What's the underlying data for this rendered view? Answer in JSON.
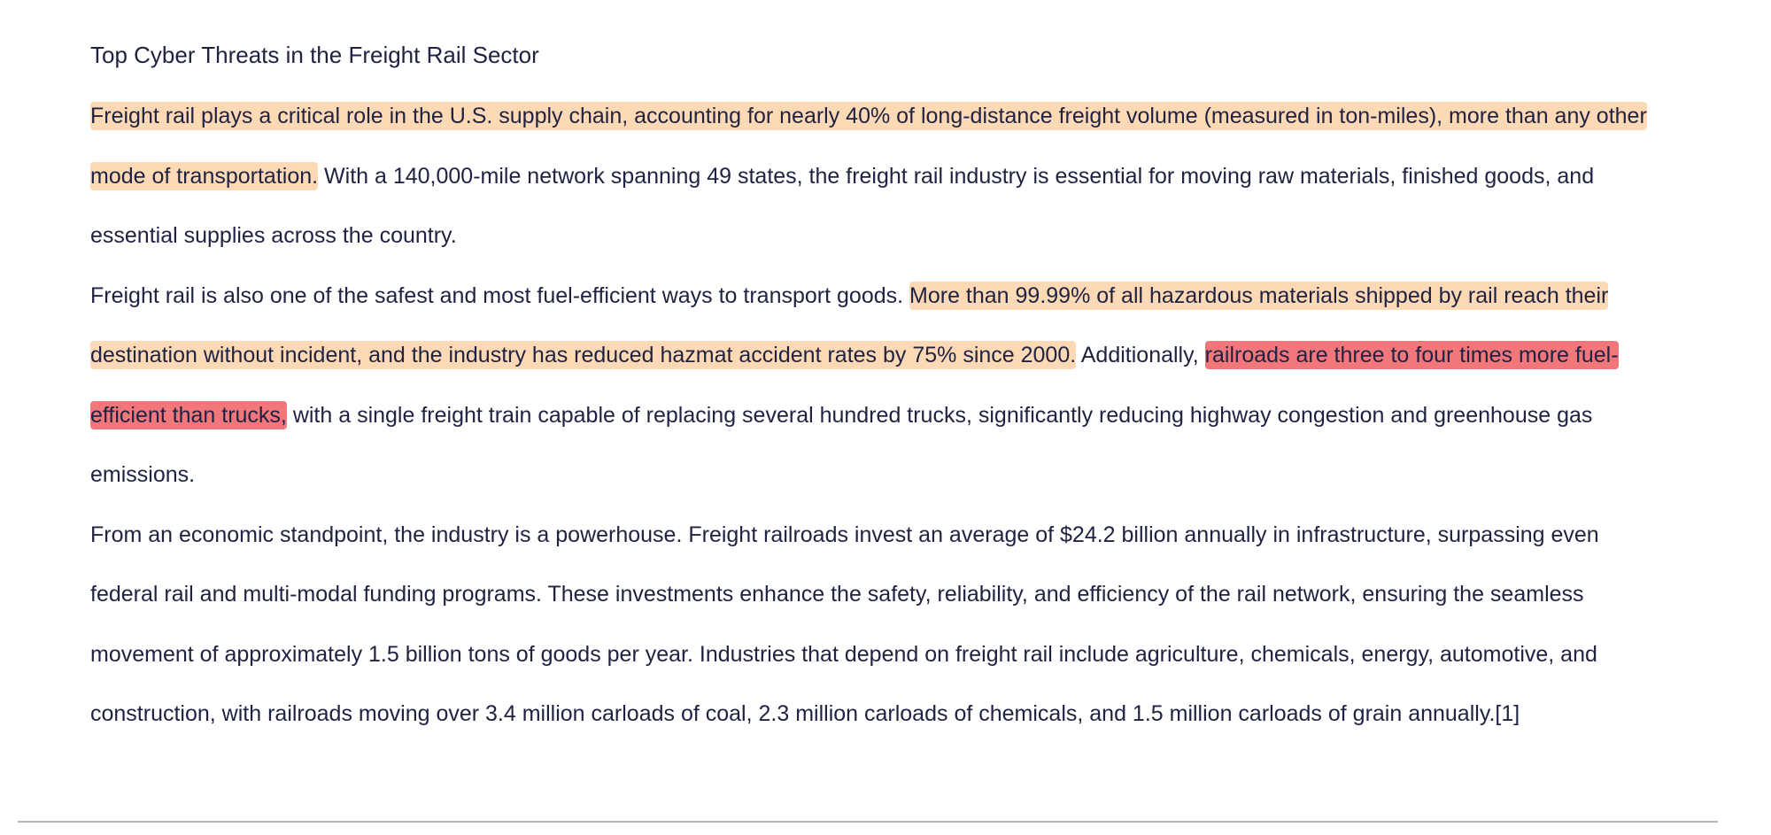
{
  "document": {
    "title": "Top Cyber Threats in the Freight Rail Sector",
    "paragraphs": [
      {
        "s1": "Freight rail plays a critical role in the U.S. supply chain, accounting for nearly 40% of long-distance freight volume (measured in ton-miles), more than any other mode of transportation.",
        "s2": " With a 140,000-mile network spanning 49 states, the freight rail industry is essential for moving raw materials, finished goods, and essential supplies across the country."
      },
      {
        "s1": "Freight rail is also one of the safest and most fuel-efficient ways to transport goods. ",
        "s2": "More than 99.99% of all hazardous materials shipped by rail reach their destination without incident, and the industry has reduced hazmat accident rates by 75% since 2000.",
        "s3": " Additionally, ",
        "s4": "railroads are three to four times more fuel-efficient than trucks,",
        "s5": " with a single freight train capable of replacing several hundred trucks, significantly reducing highway congestion and greenhouse gas emissions."
      },
      {
        "s1": "From an economic standpoint, the industry is a powerhouse. Freight railroads invest an average of $24.2 billion annually in infrastructure, surpassing even federal rail and multi-modal funding programs. These investments enhance the safety, reliability, and efficiency of the rail network, ensuring the seamless movement of approximately 1.5 billion tons of goods per year. Industries that depend on freight rail include agriculture, chemicals, energy, automotive, and construction, with railroads moving over 3.4 million carloads of coal, 2.3 million carloads of chemicals, and 1.5 million carloads of grain annually.[1]"
      }
    ]
  },
  "colors": {
    "highlight_peach": "#fdd9b5",
    "highlight_red": "#f2777b",
    "text": "#1f2240",
    "rule": "#b5b5b9"
  }
}
